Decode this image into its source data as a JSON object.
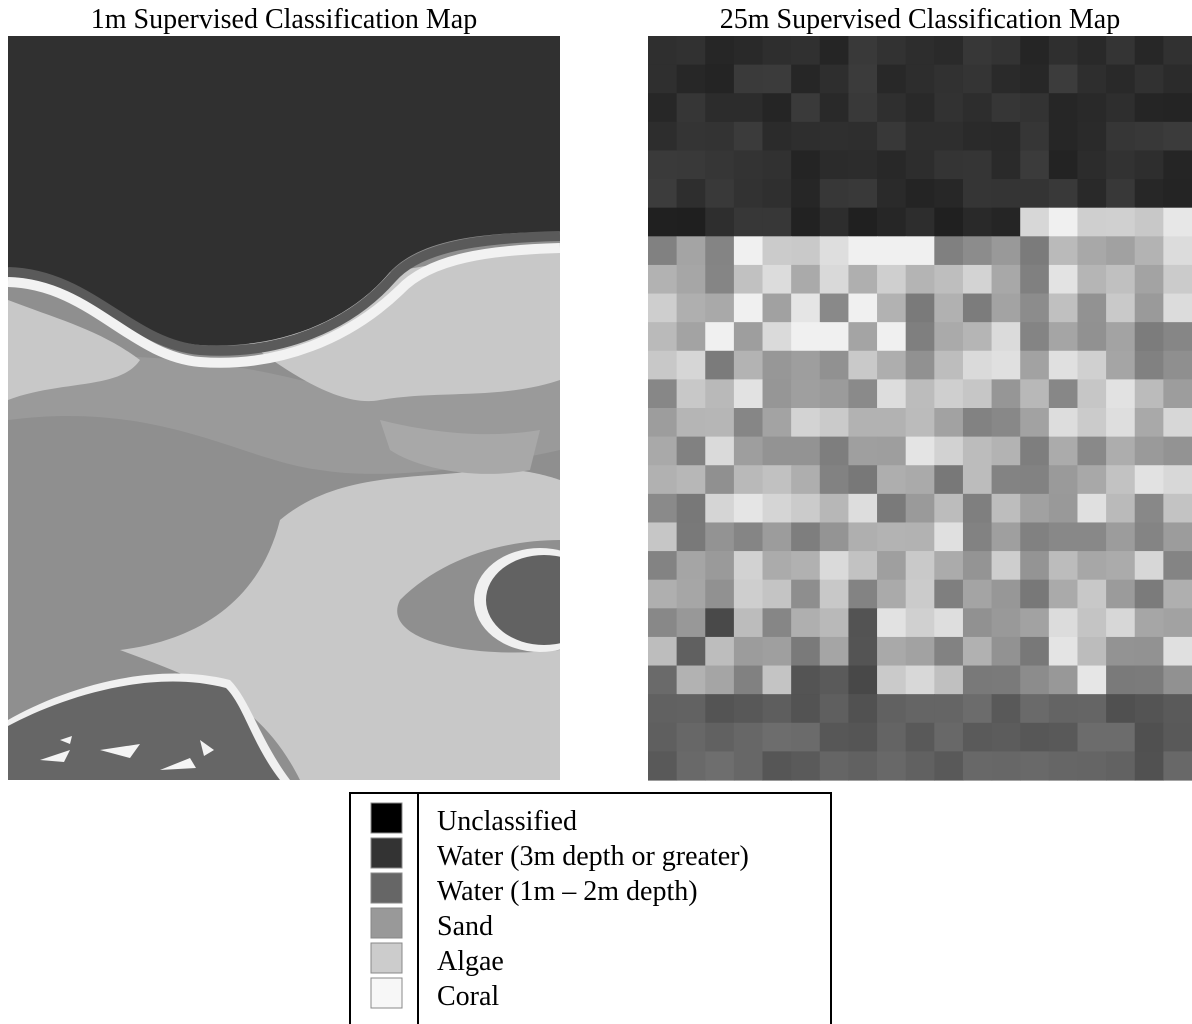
{
  "maps": [
    {
      "title": "1m Supervised Classification Map"
    },
    {
      "title": "25m Supervised Classification Map"
    }
  ],
  "legend": {
    "items": [
      {
        "label": "Unclassified",
        "color": "#000000"
      },
      {
        "label": "Water (3m depth or greater)",
        "color": "#333333"
      },
      {
        "label": "Water (1m – 2m depth)",
        "color": "#666666"
      },
      {
        "label": "Sand",
        "color": "#999999"
      },
      {
        "label": "Algae",
        "color": "#cccccc"
      },
      {
        "label": "Coral",
        "color": "#f7f7f7"
      }
    ]
  }
}
